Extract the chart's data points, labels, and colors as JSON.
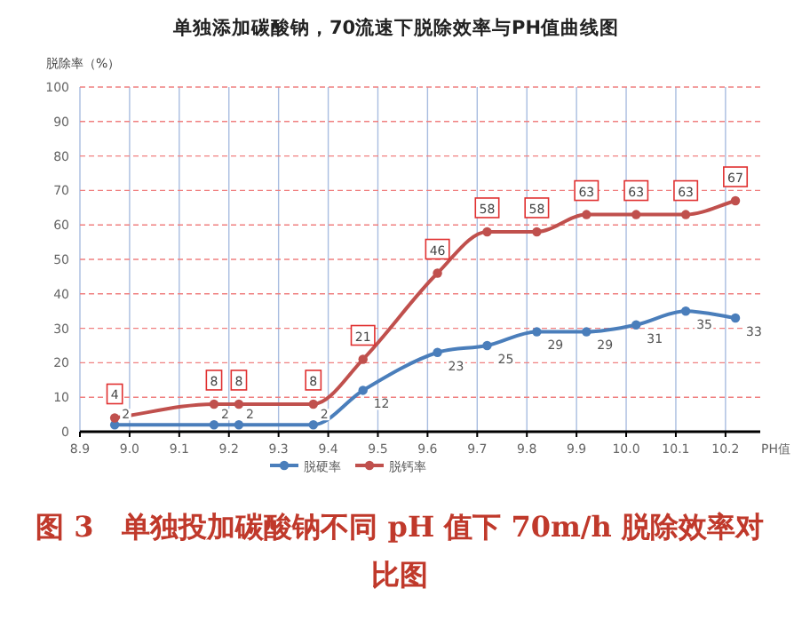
{
  "chart_data": {
    "type": "line",
    "title": "单独添加碳酸钠，70流速下脱除效率与PH值曲线图",
    "ylabel": "脱除率（%）",
    "xlabel": "PH值",
    "annotations": [
      "图 3　单独投加碳酸钠不同 pH 值下 70m/h 脱除效率对比图"
    ],
    "x": [
      8.97,
      9.17,
      9.22,
      9.37,
      9.47,
      9.62,
      9.72,
      9.82,
      9.92,
      10.02,
      10.12,
      10.22
    ],
    "series": [
      {
        "name": "脱硬率",
        "color": "#4a7ebb",
        "values": [
          2,
          2,
          2,
          2,
          12,
          23,
          25,
          29,
          29,
          31,
          35,
          33
        ]
      },
      {
        "name": "脱钙率",
        "color": "#c0504d",
        "values": [
          4,
          8,
          8,
          8,
          21,
          46,
          58,
          58,
          63,
          63,
          63,
          67
        ]
      }
    ],
    "xlim": [
      8.9,
      10.27
    ],
    "xticks": [
      8.9,
      {
        "value": 9,
        "label": "9.0"
      },
      9.1,
      9.2,
      9.3,
      9.4,
      9.5,
      9.6,
      9.7,
      9.8,
      9.9,
      {
        "value": 10,
        "label": "10.0"
      },
      10.1,
      10.2
    ],
    "ylim": [
      0,
      100
    ],
    "yticks": [
      0,
      10,
      20,
      30,
      40,
      50,
      60,
      70,
      80,
      90,
      100
    ],
    "grid": true,
    "legend": "bottom",
    "marker": "circle",
    "data_labels": true
  }
}
